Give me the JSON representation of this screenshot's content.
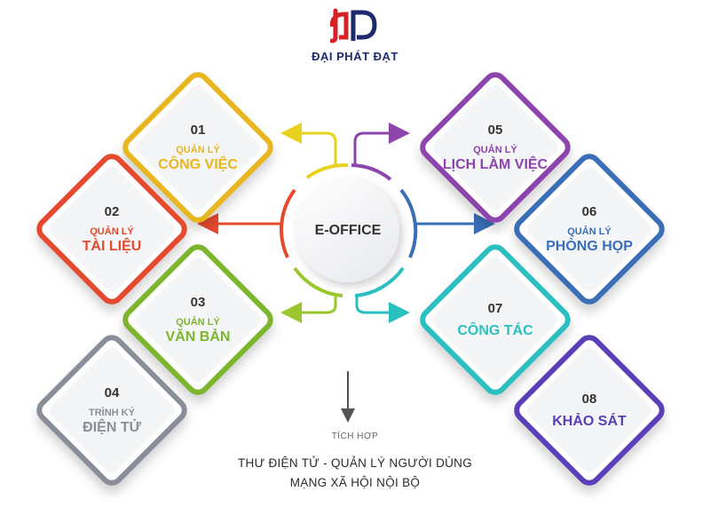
{
  "brand": {
    "name": "ĐẠI PHÁT ĐẠT",
    "logo_colors": [
      "#d62127",
      "#1e2a6e"
    ]
  },
  "center": {
    "label": "E-OFFICE"
  },
  "modules": [
    {
      "number": "01",
      "sub": "QUẢN LÝ",
      "title": "CÔNG VIỆC",
      "color": "#e8b61f"
    },
    {
      "number": "02",
      "sub": "QUẢN LÝ",
      "title": "TÀI LIỆU",
      "color": "#e64a2e"
    },
    {
      "number": "03",
      "sub": "QUẢN LÝ",
      "title": "VĂN BẢN",
      "color": "#7cb62d"
    },
    {
      "number": "04",
      "sub": "TRÌNH KÝ",
      "title": "ĐIỆN TỬ",
      "color": "#8a8e98"
    },
    {
      "number": "05",
      "sub": "QUẢN LÝ",
      "title": "LỊCH LÀM VIỆC",
      "color": "#8e44ad"
    },
    {
      "number": "06",
      "sub": "QUẢN LÝ",
      "title": "PHÒNG HỌP",
      "color": "#3a6fb8"
    },
    {
      "number": "07",
      "sub": "",
      "title": "CÔNG TÁC",
      "color": "#2bbfbf"
    },
    {
      "number": "08",
      "sub": "",
      "title": "KHẢO SÁT",
      "color": "#5a3fb8"
    }
  ],
  "integration": {
    "caption": "TÍCH HỢP",
    "line1": "THƯ ĐIỆN TỬ - QUẢN LÝ NGƯỜI DÙNG",
    "line2": "MẠNG XÃ HỘI NỘI BỘ"
  }
}
